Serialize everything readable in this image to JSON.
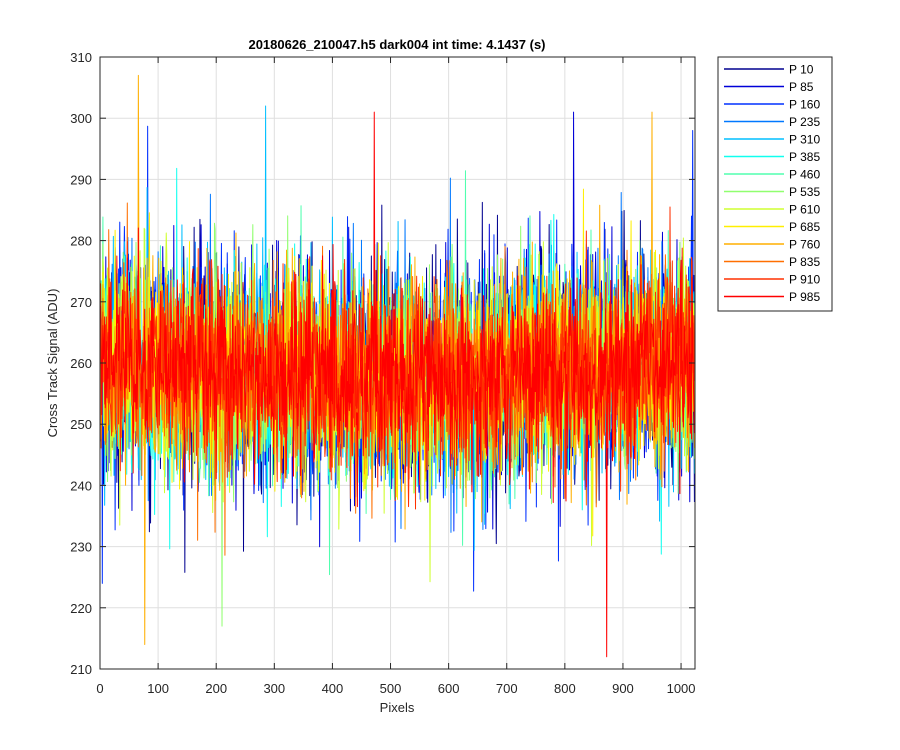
{
  "chart_data": {
    "type": "line",
    "title": "20180626_210047.h5  dark004   int time: 4.1437 (s)",
    "xlabel": "Pixels",
    "ylabel": "Cross Track Signal (ADU)",
    "xlim": [
      0,
      1024
    ],
    "ylim": [
      210,
      310
    ],
    "xticks": [
      0,
      100,
      200,
      300,
      400,
      500,
      600,
      700,
      800,
      900,
      1000
    ],
    "yticks": [
      210,
      220,
      230,
      240,
      250,
      260,
      270,
      280,
      290,
      300,
      310
    ],
    "xtick_labels": [
      "0",
      "100",
      "200",
      "300",
      "400",
      "500",
      "600",
      "700",
      "800",
      "900",
      "1000"
    ],
    "ytick_labels": [
      "210",
      "220",
      "230",
      "240",
      "250",
      "260",
      "270",
      "280",
      "290",
      "300",
      "310"
    ],
    "grid": true,
    "legend_position": "outside-top-right",
    "n_points": 1024,
    "series": [
      {
        "name": "P 10",
        "color": "#00008f",
        "mean": 259,
        "std": 9.5
      },
      {
        "name": "P 85",
        "color": "#0000d8",
        "mean": 259,
        "std": 9.0
      },
      {
        "name": "P 160",
        "color": "#0030ff",
        "mean": 259,
        "std": 8.8
      },
      {
        "name": "P 235",
        "color": "#0078ff",
        "mean": 259,
        "std": 8.6
      },
      {
        "name": "P 310",
        "color": "#00bfff",
        "mean": 259,
        "std": 8.5
      },
      {
        "name": "P 385",
        "color": "#10ffef",
        "mean": 259,
        "std": 8.4
      },
      {
        "name": "P 460",
        "color": "#50ffaf",
        "mean": 259,
        "std": 8.3
      },
      {
        "name": "P 535",
        "color": "#90ff6f",
        "mean": 259,
        "std": 8.2
      },
      {
        "name": "P 610",
        "color": "#cfff30",
        "mean": 259,
        "std": 8.1
      },
      {
        "name": "P 685",
        "color": "#ffef00",
        "mean": 259,
        "std": 8.0
      },
      {
        "name": "P 760",
        "color": "#ffaf00",
        "mean": 259,
        "std": 8.0
      },
      {
        "name": "P 835",
        "color": "#ff6f00",
        "mean": 259,
        "std": 7.8
      },
      {
        "name": "P 910",
        "color": "#ff3000",
        "mean": 259,
        "std": 7.6
      },
      {
        "name": "P 985",
        "color": "#ff0000",
        "mean": 259,
        "std": 7.3
      }
    ],
    "peaks": [
      {
        "series": "P 760",
        "x": 66,
        "y": 307
      },
      {
        "series": "P 310",
        "x": 285,
        "y": 302
      },
      {
        "series": "P 985",
        "x": 472,
        "y": 301
      },
      {
        "series": "P 85",
        "x": 815,
        "y": 301
      },
      {
        "series": "P 760",
        "x": 950,
        "y": 301
      },
      {
        "series": "P 160",
        "x": 1020,
        "y": 298
      },
      {
        "series": "P 760",
        "x": 77,
        "y": 214
      },
      {
        "series": "P 985",
        "x": 872,
        "y": 212
      },
      {
        "series": "P 535",
        "x": 210,
        "y": 217
      },
      {
        "series": "P 160",
        "x": 4,
        "y": 224
      }
    ]
  }
}
